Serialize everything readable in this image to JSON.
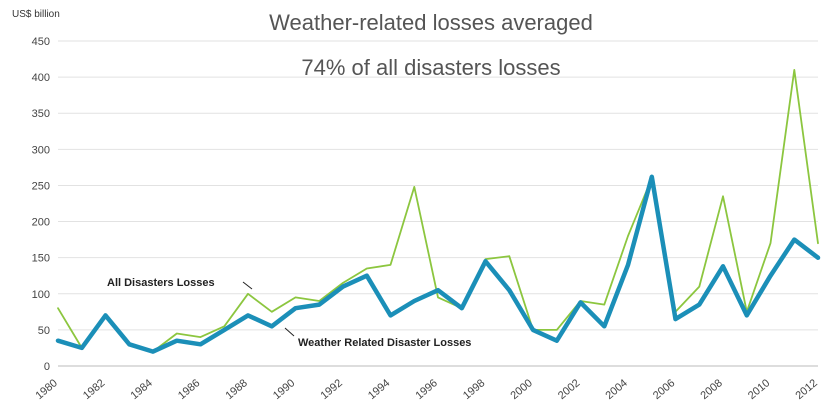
{
  "chart_data": {
    "type": "line",
    "title": "Weather-related losses averaged",
    "subtitle": "74% of all disasters losses",
    "ylabel": "US$ billion",
    "xlabel": "",
    "ylim": [
      0,
      450
    ],
    "yticks": [
      "0",
      "50",
      "100",
      "150",
      "200",
      "250",
      "300",
      "350",
      "400",
      "450"
    ],
    "xticks": [
      "1980",
      "1982",
      "1984",
      "1986",
      "1988",
      "1990",
      "1992",
      "1994",
      "1996",
      "1998",
      "2000",
      "2002",
      "2004",
      "2006",
      "2008",
      "2010",
      "2012"
    ],
    "grid": true,
    "x": [
      1980,
      1981,
      1982,
      1983,
      1984,
      1985,
      1986,
      1987,
      1988,
      1989,
      1990,
      1991,
      1992,
      1993,
      1994,
      1995,
      1996,
      1997,
      1998,
      1999,
      2000,
      2001,
      2002,
      2003,
      2004,
      2005,
      2006,
      2007,
      2008,
      2009,
      2010,
      2011,
      2012
    ],
    "series": [
      {
        "name": "All Disasters Losses",
        "color": "#8cc63f",
        "values": [
          80,
          25,
          70,
          30,
          20,
          45,
          40,
          55,
          100,
          75,
          95,
          90,
          115,
          135,
          140,
          248,
          95,
          80,
          148,
          152,
          50,
          50,
          90,
          85,
          180,
          260,
          75,
          110,
          235,
          75,
          170,
          410,
          170
        ]
      },
      {
        "name": "Weather Related Disaster Losses",
        "color": "#1b8fb8",
        "values": [
          35,
          25,
          70,
          30,
          20,
          35,
          30,
          50,
          70,
          55,
          80,
          85,
          110,
          125,
          70,
          90,
          105,
          80,
          145,
          105,
          50,
          35,
          88,
          55,
          140,
          262,
          65,
          85,
          138,
          70,
          125,
          175,
          150
        ]
      }
    ],
    "annotations": [
      {
        "text": "All Disasters Losses",
        "series": 0
      },
      {
        "text": "Weather Related Disaster Losses",
        "series": 1
      }
    ]
  }
}
